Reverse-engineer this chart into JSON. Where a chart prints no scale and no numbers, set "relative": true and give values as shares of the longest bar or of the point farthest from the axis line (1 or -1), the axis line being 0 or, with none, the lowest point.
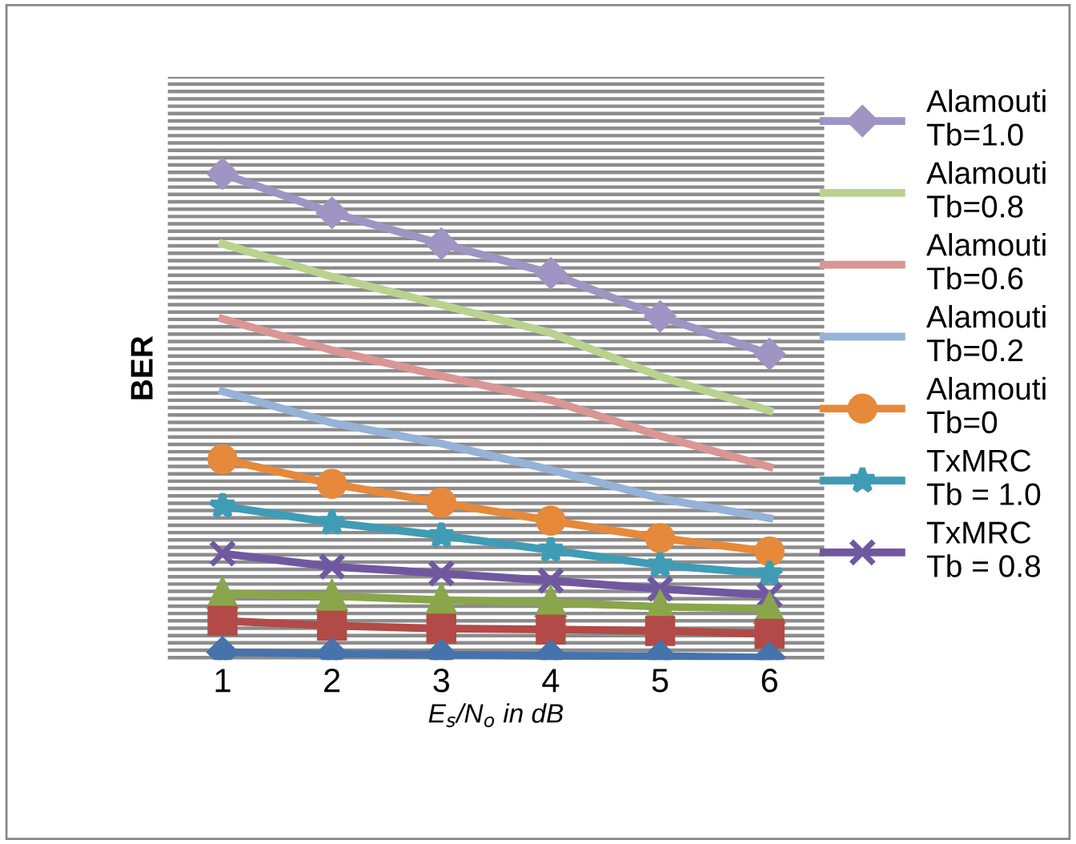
{
  "chart_data": {
    "type": "line",
    "relative": true,
    "ylabel": "BER",
    "xlabel": "E$_{s}$/N$_{o}$ in dB",
    "categories": [
      "1",
      "2",
      "3",
      "4",
      "5",
      "6"
    ],
    "grid": "y",
    "legend": "right",
    "series": [
      {
        "name": "Alamouti Tb=1.0",
        "color": "#a094c4",
        "marker": "diamond",
        "values": [
          1.0,
          0.919,
          0.855,
          0.794,
          0.705,
          0.627
        ]
      },
      {
        "name": "Alamouti Tb=0.8",
        "color": "#b9d38f",
        "marker": "none",
        "values": [
          0.855,
          0.787,
          0.729,
          0.671,
          0.581,
          0.51
        ]
      },
      {
        "name": "Alamouti Tb=0.6",
        "color": "#d99694",
        "marker": "none",
        "values": [
          0.7,
          0.635,
          0.582,
          0.532,
          0.458,
          0.394
        ]
      },
      {
        "name": "Alamouti Tb=0.2",
        "color": "#95b3d7",
        "marker": "none",
        "values": [
          0.55,
          0.485,
          0.442,
          0.388,
          0.329,
          0.288
        ]
      },
      {
        "name": "Alamouti Tb=0",
        "color": "#e6893a",
        "marker": "circle",
        "values": [
          0.41,
          0.359,
          0.32,
          0.283,
          0.247,
          0.219
        ]
      },
      {
        "name": "TxMRC Tb = 1.0",
        "color": "#3f9cb5",
        "marker": "star",
        "values": [
          0.313,
          0.279,
          0.252,
          0.222,
          0.191,
          0.173
        ]
      },
      {
        "name": "TxMRC Tb = 0.8",
        "color": "#7058a0",
        "marker": "cross",
        "values": [
          0.215,
          0.188,
          0.174,
          0.159,
          0.142,
          0.129
        ]
      },
      {
        "color": "#8aa64a",
        "marker": "triangle",
        "values": [
          0.132,
          0.127,
          0.119,
          0.114,
          0.105,
          0.101
        ]
      },
      {
        "color": "#b24a47",
        "marker": "square",
        "values": [
          0.076,
          0.066,
          0.06,
          0.058,
          0.055,
          0.049
        ]
      },
      {
        "color": "#4673ab",
        "marker": "diamond",
        "values": [
          0.011,
          0.008,
          0.006,
          0.004,
          0.003,
          0.0
        ]
      }
    ]
  }
}
